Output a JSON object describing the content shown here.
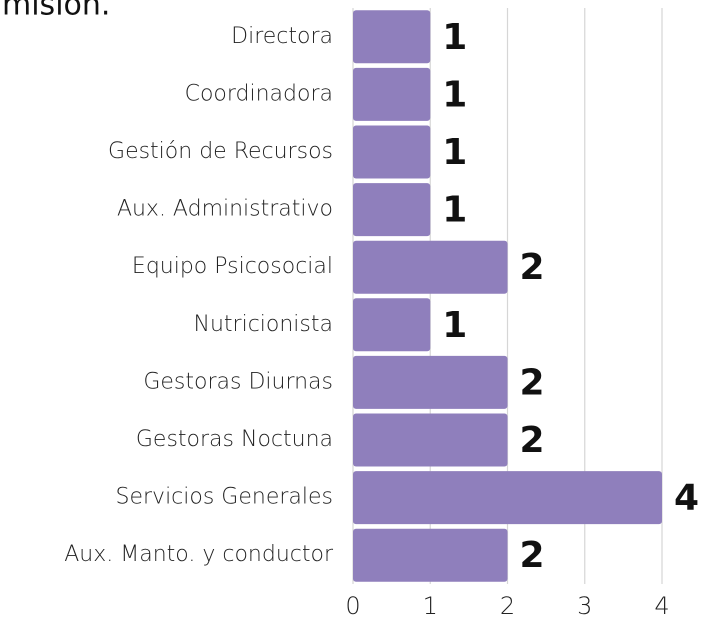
{
  "chart_data": {
    "type": "bar",
    "orientation": "horizontal",
    "title": "misión.",
    "categories": [
      "Directora",
      "Coordinadora",
      "Gestión de Recursos",
      "Aux. Administrativo",
      "Equipo Psicosocial",
      "Nutricionista",
      "Gestoras Diurnas",
      "Gestoras Noctuna",
      "Servicios Generales",
      "Aux. Manto. y conductor"
    ],
    "values": [
      1,
      1,
      1,
      1,
      2,
      1,
      2,
      2,
      4,
      2
    ],
    "color": "#8f7fbc",
    "xlim": [
      0,
      4
    ],
    "xticks": [
      0,
      1,
      2,
      3,
      4
    ],
    "grid": true
  }
}
